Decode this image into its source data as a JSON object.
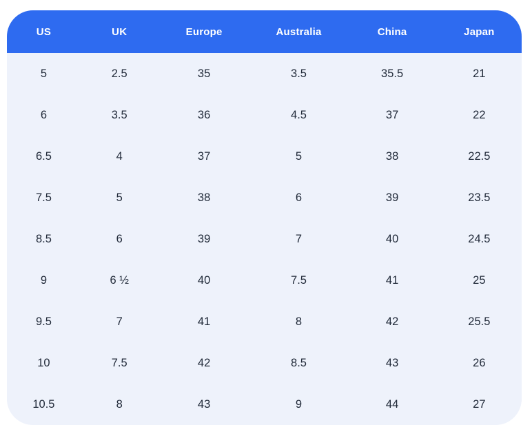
{
  "colors": {
    "header_bg": "#2e6bf0",
    "body_bg": "#eef2fb",
    "header_text": "#ffffff",
    "cell_text": "#222b3a",
    "page_bg": "#ffffff"
  },
  "chart_data": {
    "type": "table",
    "columns": [
      "US",
      "UK",
      "Europe",
      "Australia",
      "China",
      "Japan"
    ],
    "rows": [
      [
        "5",
        "2.5",
        "35",
        "3.5",
        "35.5",
        "21"
      ],
      [
        "6",
        "3.5",
        "36",
        "4.5",
        "37",
        "22"
      ],
      [
        "6.5",
        "4",
        "37",
        "5",
        "38",
        "22.5"
      ],
      [
        "7.5",
        "5",
        "38",
        "6",
        "39",
        "23.5"
      ],
      [
        "8.5",
        "6",
        "39",
        "7",
        "40",
        "24.5"
      ],
      [
        "9",
        "6 ½",
        "40",
        "7.5",
        "41",
        "25"
      ],
      [
        "9.5",
        "7",
        "41",
        "8",
        "42",
        "25.5"
      ],
      [
        "10",
        "7.5",
        "42",
        "8.5",
        "43",
        "26"
      ],
      [
        "10.5",
        "8",
        "43",
        "9",
        "44",
        "27"
      ]
    ]
  }
}
